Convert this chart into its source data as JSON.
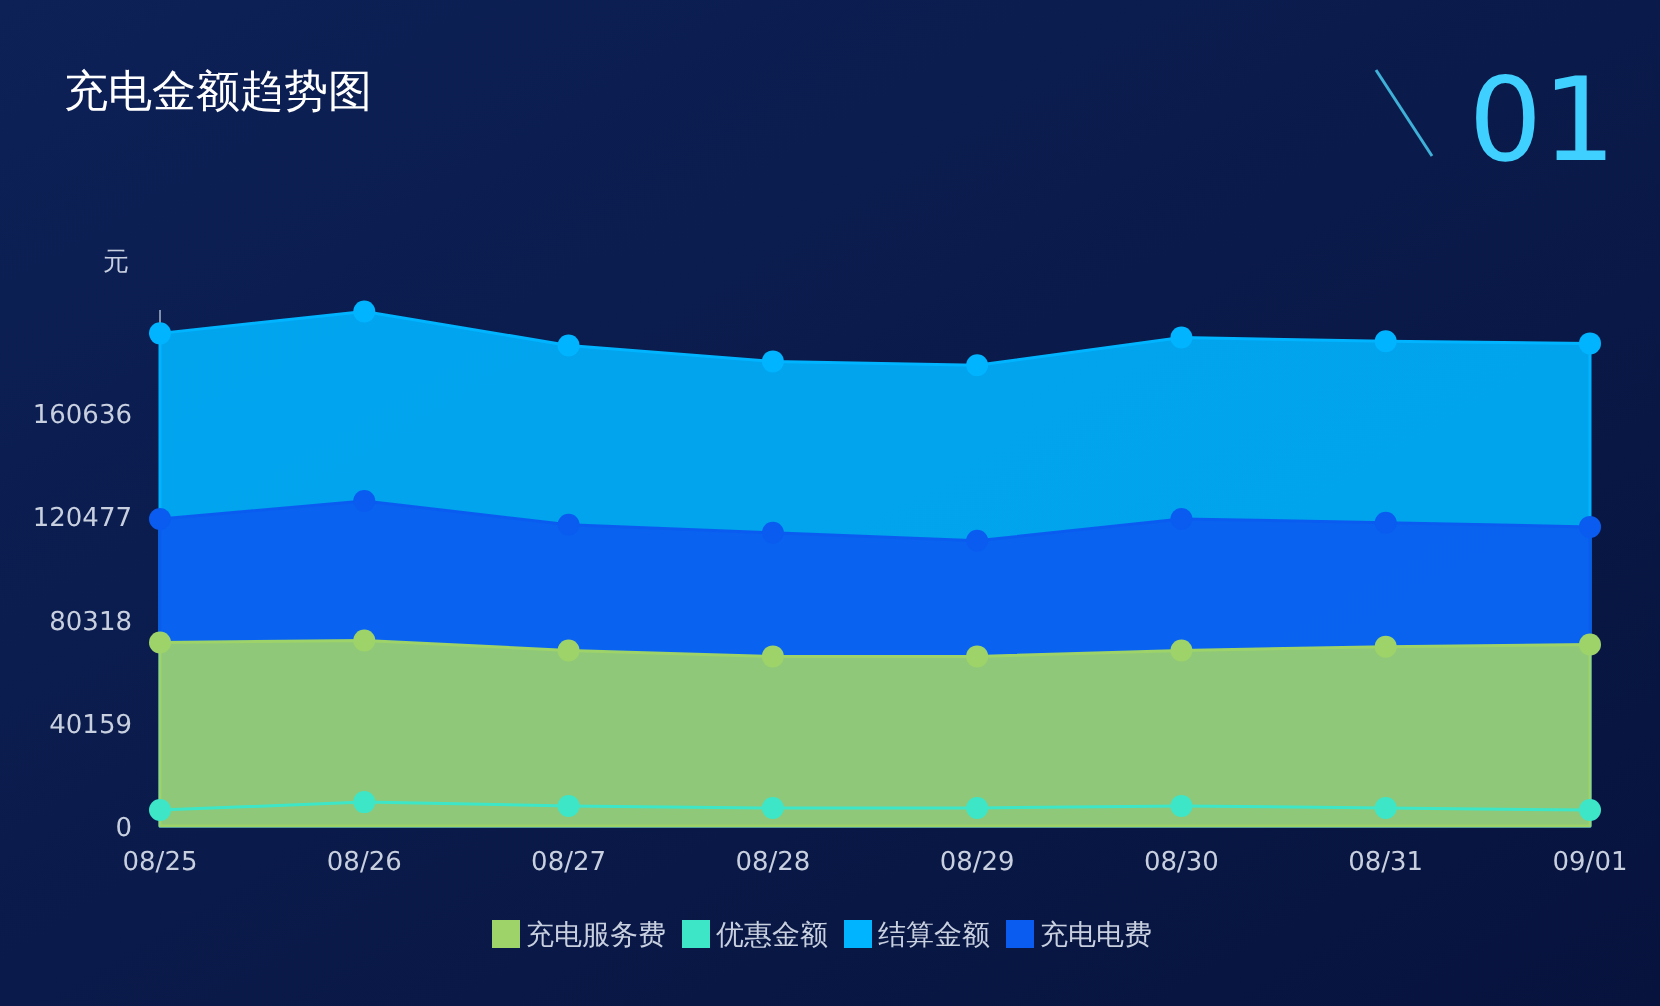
{
  "chart_data": {
    "type": "area",
    "title": "充电金额趋势图",
    "annotations": [
      "01"
    ],
    "ylabel": "元",
    "categories": [
      "08/25",
      "08/26",
      "08/27",
      "08/28",
      "08/29",
      "08/30",
      "08/31",
      "09/01"
    ],
    "ylim": [
      0,
      200795
    ],
    "yticks": [
      0,
      40159,
      80318,
      120477,
      160636
    ],
    "series": [
      {
        "name": "充电服务费",
        "color": "#9ed36a",
        "values": [
          71400,
          72200,
          68300,
          66000,
          66000,
          68300,
          69800,
          70600
        ]
      },
      {
        "name": "优惠金额",
        "color": "#3ee6c8",
        "type": "line",
        "values": [
          6200,
          9300,
          7800,
          7000,
          7000,
          7800,
          7000,
          6200
        ]
      },
      {
        "name": "结算金额",
        "color": "#00b4ff",
        "values": [
          191700,
          200200,
          187000,
          180800,
          179300,
          190100,
          188600,
          187800
        ]
      },
      {
        "name": "充电电费",
        "color": "#0a5cf0",
        "values": [
          119500,
          126500,
          117200,
          114100,
          111000,
          119500,
          118000,
          116400
        ]
      }
    ],
    "marker": "circle",
    "legend": "bottom",
    "grid": false
  }
}
